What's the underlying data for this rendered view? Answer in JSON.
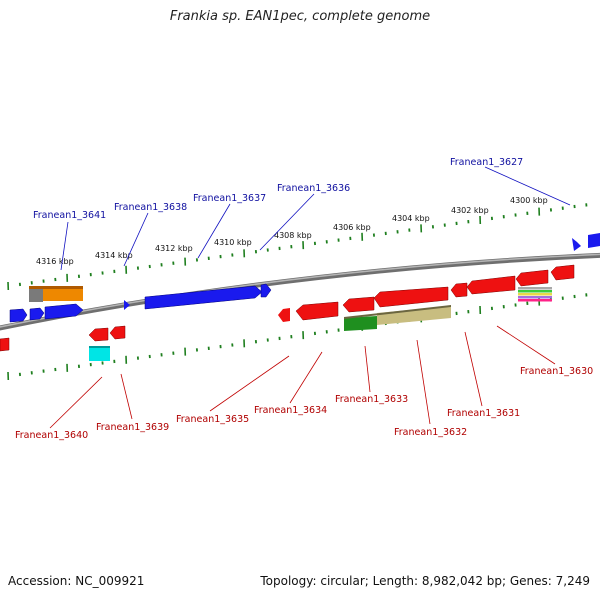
{
  "title": "Frankia sp. EAN1pec, complete genome",
  "accession": "Accession: NC_009921",
  "stats": "Topology: circular; Length: 8,982,042 bp; Genes: 7,249",
  "colors": {
    "forward_gene": "#0000ee",
    "reverse_gene": "#ee0000",
    "forward_label": "#1010a0",
    "reverse_label": "#b00000",
    "backbone": "#808080",
    "tick": "#228822"
  },
  "scale_labels": [
    "4316 kbp",
    "4314 kbp",
    "4312 kbp",
    "4310 kbp",
    "4308 kbp",
    "4306 kbp",
    "4304 kbp",
    "4302 kbp",
    "4300 kbp"
  ],
  "forward_gene_labels": [
    "Franean1_3641",
    "Franean1_3638",
    "Franean1_3637",
    "Franean1_3636",
    "Franean1_3627"
  ],
  "reverse_gene_labels": [
    "Franean1_3640",
    "Franean1_3639",
    "Franean1_3635",
    "Franean1_3634",
    "Franean1_3633",
    "Franean1_3632",
    "Franean1_3631",
    "Franean1_3630"
  ]
}
